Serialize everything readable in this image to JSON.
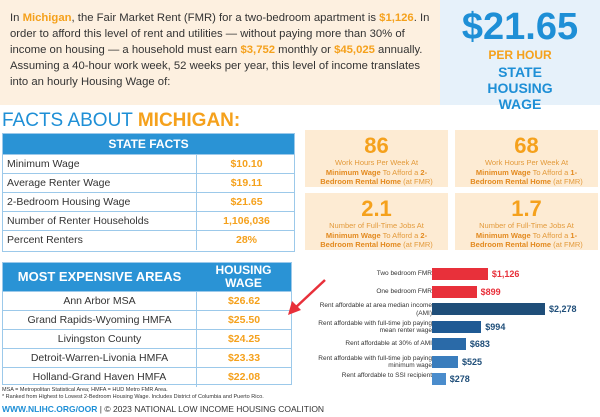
{
  "intro": [
    "In ",
    "Michigan",
    ", the Fair Market Rent (FMR) for a two-bedroom apartment is ",
    "$1,126",
    ". In order to afford this level of rent and utilities — without paying more than 30% of income on housing — a household must earn ",
    "$3,752",
    " monthly or ",
    "$45,025",
    " annually. Assuming a 40-hour work week, 52 weeks per year, this level of income translates into an hourly Housing Wage of:"
  ],
  "wage": {
    "value": "$21.65",
    "unit": "PER HOUR",
    "label": "STATE HOUSING WAGE"
  },
  "facts_title": [
    "FACTS ABOUT ",
    "MICHIGAN:"
  ],
  "state_facts": {
    "header": "STATE FACTS",
    "rows": [
      [
        "Minimum Wage",
        "$10.10"
      ],
      [
        "Average Renter Wage",
        "$19.11"
      ],
      [
        "2-Bedroom Housing Wage",
        "$21.65"
      ],
      [
        "Number of Renter Households",
        "1,106,036"
      ],
      [
        "Percent Renters",
        "28%"
      ]
    ]
  },
  "boxes": [
    {
      "value": "86",
      "lead": "Work Hours Per Week At",
      "parts": [
        "Minimum Wage",
        " To Afford a ",
        "2-Bedroom Rental Home",
        " (at FMR)"
      ]
    },
    {
      "value": "68",
      "lead": "Work Hours Per Week At",
      "parts": [
        "Minimum Wage",
        " To Afford a ",
        "1-Bedroom Rental Home",
        " (at FMR)"
      ]
    },
    {
      "value": "2.1",
      "lead": "Number of Full-Time Jobs At",
      "parts": [
        "Minimum Wage",
        " To Afford a ",
        "2-Bedroom Rental Home",
        " (at FMR)"
      ]
    },
    {
      "value": "1.7",
      "lead": "Number of Full-Time Jobs At",
      "parts": [
        "Minimum Wage",
        " To Afford a ",
        "1-Bedroom Rental Home",
        " (at FMR)"
      ]
    }
  ],
  "areas": {
    "header": [
      "MOST EXPENSIVE AREAS",
      "HOUSING WAGE"
    ],
    "rows": [
      [
        "Ann Arbor MSA",
        "$26.62"
      ],
      [
        "Grand Rapids-Wyoming HMFA",
        "$25.50"
      ],
      [
        "Livingston County",
        "$24.25"
      ],
      [
        "Detroit-Warren-Livonia HMFA",
        "$23.33"
      ],
      [
        "Holland-Grand Haven HMFA",
        "$22.08"
      ]
    ]
  },
  "chart_data": {
    "type": "bar",
    "orientation": "horizontal",
    "categories": [
      "Two bedroom FMR",
      "One bedroom FMR",
      "Rent affordable at area median income (AMI)",
      "Rent affordable with full-time job paying mean renter wage",
      "Rent affordable at 30% of AMI",
      "Rent affordable with full-time job paying minimum wage",
      "Rent affordable to SSI recipient"
    ],
    "values": [
      1126,
      899,
      2278,
      994,
      683,
      525,
      278
    ],
    "value_labels": [
      "$1,126",
      "$899",
      "$2,278",
      "$994",
      "$683",
      "$525",
      "$278"
    ],
    "colors": [
      "#e8303a",
      "#e8303a",
      "#1f4e79",
      "#1f5a94",
      "#2a6aa8",
      "#3a7dbd",
      "#4a8ccc"
    ],
    "label_colors": [
      "#e8303a",
      "#e8303a",
      "#1f4e79",
      "#1f4e79",
      "#1f4e79",
      "#1f4e79",
      "#1f4e79"
    ]
  },
  "notes": [
    "MSA = Metropolitan Statistical Area; HMFA = HUD Metro FMR Area.",
    "* Ranked from Highest to Lowest 2-Bedroom Housing Wage. Includes District of Columbia and Puerto Rico."
  ],
  "footer": [
    "WWW.NLIHC.ORG/OOR",
    " | © 2023 NATIONAL LOW INCOME HOUSING COALITION"
  ]
}
